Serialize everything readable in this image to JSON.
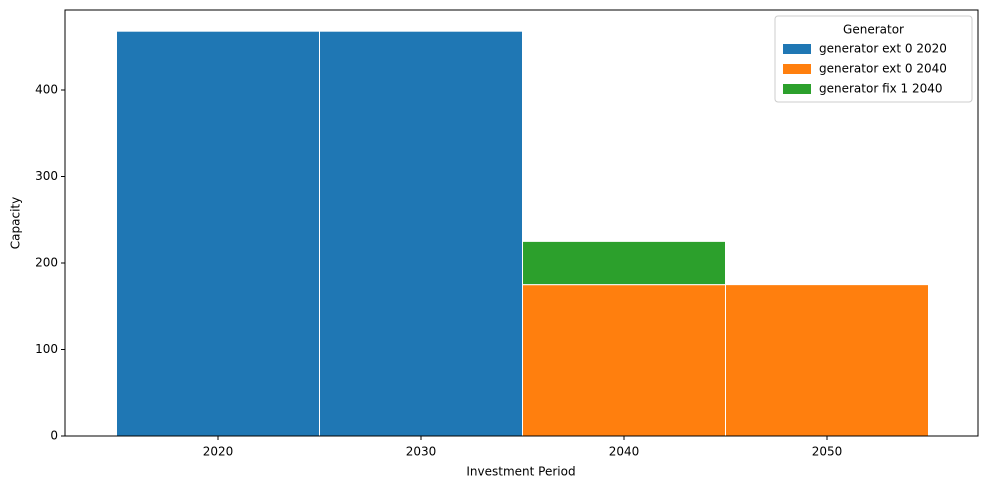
{
  "chart_data": {
    "type": "stacked-bar",
    "x_label": "Investment Period",
    "y_label": "Capacity",
    "categories": [
      "2020",
      "2030",
      "2040",
      "2050"
    ],
    "series": [
      {
        "name": "generator ext 0 2020",
        "color": "#1f77b4",
        "values": [
          468,
          468,
          0,
          0
        ]
      },
      {
        "name": "generator ext 0 2040",
        "color": "#ff7f0e",
        "values": [
          0,
          0,
          175,
          175
        ]
      },
      {
        "name": "generator fix 1 2040",
        "color": "#2ca02c",
        "values": [
          0,
          0,
          50,
          0
        ]
      }
    ],
    "legend_title": "Generator",
    "legend_position": "upper-right",
    "ylim": [
      0,
      492.5
    ],
    "yticks": [
      0,
      100,
      200,
      300,
      400
    ],
    "grid": false
  }
}
